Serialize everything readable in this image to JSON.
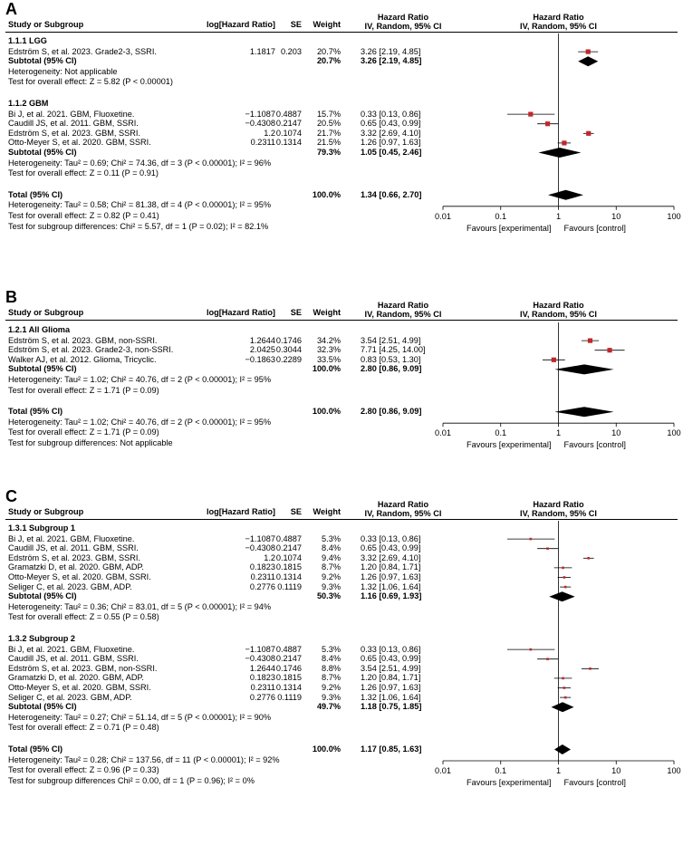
{
  "chart_data": [
    {
      "type": "forest",
      "panel": "A",
      "headers": {
        "study": "Study or Subgroup",
        "loghr": "log[Hazard Ratio]",
        "se": "SE",
        "weight": "Weight",
        "hr_text": "Hazard Ratio\nIV, Random, 95% CI",
        "hr_plot": "Hazard Ratio\nIV, Random, 95% CI"
      },
      "xaxis": {
        "scale": "log",
        "range": [
          0.01,
          100
        ],
        "ticks": [
          "0.01",
          "0.1",
          "1",
          "10",
          "100"
        ],
        "left_label": "Favours [experimental]",
        "right_label": "Favours [control]"
      },
      "groups": [
        {
          "title": "1.1.1 LGG",
          "studies": [
            {
              "name": "Edström S, et al. 2023. Grade2-3, SSRI.",
              "loghr": "1.1817",
              "se": "0.203",
              "weight": "20.7%",
              "ci_text": "3.26 [2.19, 4.85]",
              "hr": 3.26,
              "lo": 2.19,
              "hi": 4.85
            }
          ],
          "subtotal": {
            "label": "Subtotal (95% CI)",
            "weight": "20.7%",
            "ci_text": "3.26 [2.19, 4.85]",
            "hr": 3.26,
            "lo": 2.19,
            "hi": 4.85
          },
          "notes": [
            "Heterogeneity: Not applicable",
            "Test for overall effect: Z = 5.82 (P < 0.00001)"
          ]
        },
        {
          "title": "1.1.2 GBM",
          "studies": [
            {
              "name": "Bi J, et al. 2021. GBM, Fluoxetine.",
              "loghr": "−1.1087",
              "se": "0.4887",
              "weight": "15.7%",
              "ci_text": "0.33 [0.13, 0.86]",
              "hr": 0.33,
              "lo": 0.13,
              "hi": 0.86
            },
            {
              "name": "Caudill JS, et al. 2011. GBM, SSRI.",
              "loghr": "−0.4308",
              "se": "0.2147",
              "weight": "20.5%",
              "ci_text": "0.65 [0.43, 0.99]",
              "hr": 0.65,
              "lo": 0.43,
              "hi": 0.99
            },
            {
              "name": "Edström S, et al. 2023. GBM, SSRI.",
              "loghr": "1.2",
              "se": "0.1074",
              "weight": "21.7%",
              "ci_text": "3.32 [2.69, 4.10]",
              "hr": 3.32,
              "lo": 2.69,
              "hi": 4.1
            },
            {
              "name": "Otto-Meyer S, et al. 2020. GBM, SSRI.",
              "loghr": "0.2311",
              "se": "0.1314",
              "weight": "21.5%",
              "ci_text": "1.26 [0.97, 1.63]",
              "hr": 1.26,
              "lo": 0.97,
              "hi": 1.63
            }
          ],
          "subtotal": {
            "label": "Subtotal (95% CI)",
            "weight": "79.3%",
            "ci_text": "1.05 [0.45, 2.46]",
            "hr": 1.05,
            "lo": 0.45,
            "hi": 2.46
          },
          "notes": [
            "Heterogeneity: Tau² = 0.69; Chi² = 74.36, df = 3 (P < 0.00001); I² = 96%",
            "Test for overall effect: Z = 0.11 (P = 0.91)"
          ]
        }
      ],
      "total": {
        "label": "Total (95% CI)",
        "weight": "100.0%",
        "ci_text": "1.34 [0.66, 2.70]",
        "hr": 1.34,
        "lo": 0.66,
        "hi": 2.7
      },
      "total_notes": [
        "Heterogeneity: Tau² = 0.58; Chi² = 81.38, df = 4 (P < 0.00001); I² = 95%",
        "Test for overall effect: Z = 0.82 (P = 0.41)",
        "Test for subgroup differences: Chi² = 5.57, df = 1 (P = 0.02); I² = 82.1%"
      ]
    },
    {
      "type": "forest",
      "panel": "B",
      "headers": {
        "study": "Study or Subgroup",
        "loghr": "log[Hazard Ratio]",
        "se": "SE",
        "weight": "Weight",
        "hr_text": "Hazard Ratio\nIV, Random, 95% CI",
        "hr_plot": "Hazard Ratio\nIV, Random, 95% CI"
      },
      "xaxis": {
        "scale": "log",
        "range": [
          0.01,
          100
        ],
        "ticks": [
          "0.01",
          "0.1",
          "1",
          "10",
          "100"
        ],
        "left_label": "Favours [experimental]",
        "right_label": "Favours [control]"
      },
      "groups": [
        {
          "title": "1.2.1 All Glioma",
          "studies": [
            {
              "name": "Edström S, et al. 2023. GBM, non-SSRI.",
              "loghr": "1.2644",
              "se": "0.1746",
              "weight": "34.2%",
              "ci_text": "3.54 [2.51, 4.99]",
              "hr": 3.54,
              "lo": 2.51,
              "hi": 4.99
            },
            {
              "name": "Edström S, et al. 2023. Grade2-3, non-SSRI.",
              "loghr": "2.0425",
              "se": "0.3044",
              "weight": "32.3%",
              "ci_text": "7.71 [4.25, 14.00]",
              "hr": 7.71,
              "lo": 4.25,
              "hi": 14.0
            },
            {
              "name": "Walker AJ, et al. 2012. Glioma, Tricyclic.",
              "loghr": "−0.1863",
              "se": "0.2289",
              "weight": "33.5%",
              "ci_text": "0.83 [0.53, 1.30]",
              "hr": 0.83,
              "lo": 0.53,
              "hi": 1.3
            }
          ],
          "subtotal": {
            "label": "Subtotal (95% CI)",
            "weight": "100.0%",
            "ci_text": "2.80 [0.86, 9.09]",
            "hr": 2.8,
            "lo": 0.86,
            "hi": 9.09
          },
          "notes": [
            "Heterogeneity: Tau² = 1.02; Chi² = 40.76, df = 2 (P < 0.00001); I² = 95%",
            "Test for overall effect: Z = 1.71 (P = 0.09)"
          ]
        }
      ],
      "total": {
        "label": "Total (95% CI)",
        "weight": "100.0%",
        "ci_text": "2.80 [0.86, 9.09]",
        "hr": 2.8,
        "lo": 0.86,
        "hi": 9.09
      },
      "total_notes": [
        "Heterogeneity: Tau² = 1.02; Chi² = 40.76, df = 2 (P < 0.00001); I² = 95%",
        "Test for overall effect: Z = 1.71 (P = 0.09)",
        "Test for subgroup differences: Not applicable"
      ]
    },
    {
      "type": "forest",
      "panel": "C",
      "headers": {
        "study": "Study or Subgroup",
        "loghr": "log[Hazard Ratio]",
        "se": "SE",
        "weight": "Weight",
        "hr_text": "Hazard Ratio\nIV, Random, 95% CI",
        "hr_plot": "Hazard Ratio\nIV, Random, 95% CI"
      },
      "xaxis": {
        "scale": "log",
        "range": [
          0.01,
          100
        ],
        "ticks": [
          "0.01",
          "0.1",
          "1",
          "10",
          "100"
        ],
        "left_label": "Favours [experimental]",
        "right_label": "Favours [control]"
      },
      "groups": [
        {
          "title": "1.3.1 Subgroup 1",
          "studies": [
            {
              "name": "Bi J, et al. 2021. GBM, Fluoxetine.",
              "loghr": "−1.1087",
              "se": "0.4887",
              "weight": "5.3%",
              "ci_text": "0.33 [0.13, 0.86]",
              "hr": 0.33,
              "lo": 0.13,
              "hi": 0.86
            },
            {
              "name": "Caudill JS, et al. 2011. GBM, SSRI.",
              "loghr": "−0.4308",
              "se": "0.2147",
              "weight": "8.4%",
              "ci_text": "0.65 [0.43, 0.99]",
              "hr": 0.65,
              "lo": 0.43,
              "hi": 0.99
            },
            {
              "name": "Edström S, et al. 2023. GBM, SSRI.",
              "loghr": "1.2",
              "se": "0.1074",
              "weight": "9.4%",
              "ci_text": "3.32 [2.69, 4.10]",
              "hr": 3.32,
              "lo": 2.69,
              "hi": 4.1
            },
            {
              "name": "Gramatzki D, et al. 2020. GBM, ADP.",
              "loghr": "0.1823",
              "se": "0.1815",
              "weight": "8.7%",
              "ci_text": "1.20 [0.84, 1.71]",
              "hr": 1.2,
              "lo": 0.84,
              "hi": 1.71
            },
            {
              "name": "Otto-Meyer S, et al. 2020. GBM, SSRI.",
              "loghr": "0.2311",
              "se": "0.1314",
              "weight": "9.2%",
              "ci_text": "1.26 [0.97, 1.63]",
              "hr": 1.26,
              "lo": 0.97,
              "hi": 1.63
            },
            {
              "name": "Seliger C, et al. 2023. GBM, ADP.",
              "loghr": "0.2776",
              "se": "0.1119",
              "weight": "9.3%",
              "ci_text": "1.32 [1.06, 1.64]",
              "hr": 1.32,
              "lo": 1.06,
              "hi": 1.64
            }
          ],
          "subtotal": {
            "label": "Subtotal (95% CI)",
            "weight": "50.3%",
            "ci_text": "1.16 [0.69, 1.93]",
            "hr": 1.16,
            "lo": 0.69,
            "hi": 1.93
          },
          "notes": [
            "Heterogeneity: Tau² = 0.36; Chi² = 83.01, df = 5 (P < 0.00001); I² = 94%",
            "Test for overall effect: Z = 0.55 (P = 0.58)"
          ]
        },
        {
          "title": "1.3.2 Subgroup 2",
          "studies": [
            {
              "name": "Bi J, et al. 2021. GBM, Fluoxetine.",
              "loghr": "−1.1087",
              "se": "0.4887",
              "weight": "5.3%",
              "ci_text": "0.33 [0.13, 0.86]",
              "hr": 0.33,
              "lo": 0.13,
              "hi": 0.86
            },
            {
              "name": "Caudill JS, et al. 2011. GBM, SSRI.",
              "loghr": "−0.4308",
              "se": "0.2147",
              "weight": "8.4%",
              "ci_text": "0.65 [0.43, 0.99]",
              "hr": 0.65,
              "lo": 0.43,
              "hi": 0.99
            },
            {
              "name": "Edström S, et al. 2023. GBM, non-SSRI.",
              "loghr": "1.2644",
              "se": "0.1746",
              "weight": "8.8%",
              "ci_text": "3.54 [2.51, 4.99]",
              "hr": 3.54,
              "lo": 2.51,
              "hi": 4.99
            },
            {
              "name": "Gramatzki D, et al. 2020. GBM, ADP.",
              "loghr": "0.1823",
              "se": "0.1815",
              "weight": "8.7%",
              "ci_text": "1.20 [0.84, 1.71]",
              "hr": 1.2,
              "lo": 0.84,
              "hi": 1.71
            },
            {
              "name": "Otto-Meyer S, et al. 2020. GBM, SSRI.",
              "loghr": "0.2311",
              "se": "0.1314",
              "weight": "9.2%",
              "ci_text": "1.26 [0.97, 1.63]",
              "hr": 1.26,
              "lo": 0.97,
              "hi": 1.63
            },
            {
              "name": "Seliger C, et al. 2023. GBM, ADP.",
              "loghr": "0.2776",
              "se": "0.1119",
              "weight": "9.3%",
              "ci_text": "1.32 [1.06, 1.64]",
              "hr": 1.32,
              "lo": 1.06,
              "hi": 1.64
            }
          ],
          "subtotal": {
            "label": "Subtotal (95% CI)",
            "weight": "49.7%",
            "ci_text": "1.18 [0.75, 1.85]",
            "hr": 1.18,
            "lo": 0.75,
            "hi": 1.85
          },
          "notes": [
            "Heterogeneity: Tau² = 0.27; Chi² = 51.14, df = 5 (P < 0.00001); I² = 90%",
            "Test for overall effect: Z = 0.71 (P = 0.48)"
          ]
        }
      ],
      "total": {
        "label": "Total (95% CI)",
        "weight": "100.0%",
        "ci_text": "1.17 [0.85, 1.63]",
        "hr": 1.17,
        "lo": 0.85,
        "hi": 1.63
      },
      "total_notes": [
        "Heterogeneity: Tau² = 0.28; Chi² = 137.56, df = 11 (P < 0.00001); I² = 92%",
        "Test for overall effect: Z = 0.96 (P = 0.33)",
        "Test for subgroup differences Chi² = 0.00, df = 1 (P = 0.96); I² = 0%"
      ]
    }
  ],
  "style": {
    "marker_color": "#c0282d",
    "ci_color": "#000000",
    "diamond_color": "#000000"
  }
}
